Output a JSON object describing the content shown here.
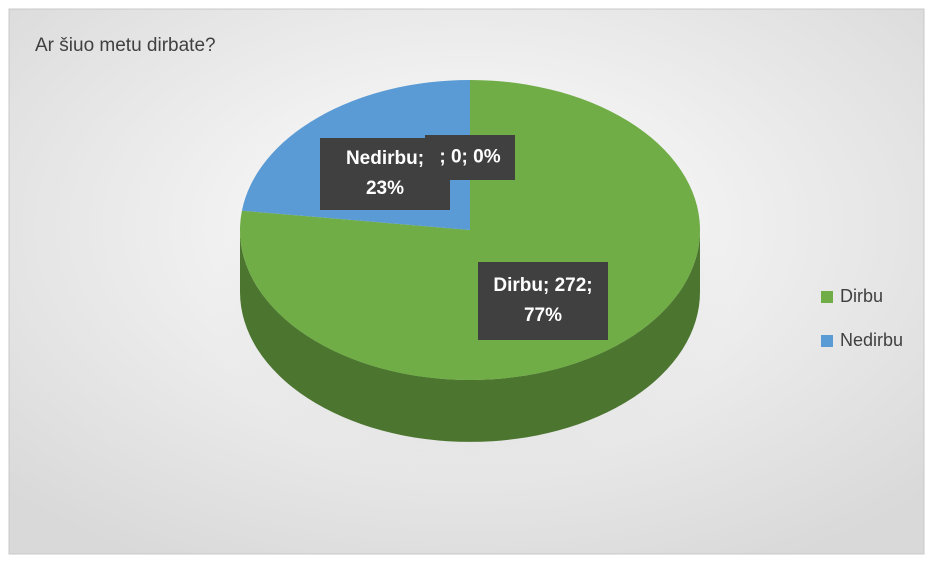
{
  "chart_data": {
    "type": "pie3d",
    "title": "Ar šiuo metu dirbate?",
    "categories": [
      "Dirbu",
      "Nedirbu",
      null
    ],
    "values": [
      272,
      81,
      0
    ],
    "percents": [
      77,
      23,
      0
    ],
    "data_labels": [
      [
        "Dirbu; 272;",
        "77%"
      ],
      [
        "Nedirbu;",
        "23%"
      ],
      [
        "; 0; 0%"
      ]
    ],
    "colors": [
      "#70ad47",
      "#5b9bd5",
      "#a5a5a5"
    ],
    "legend": "right"
  }
}
